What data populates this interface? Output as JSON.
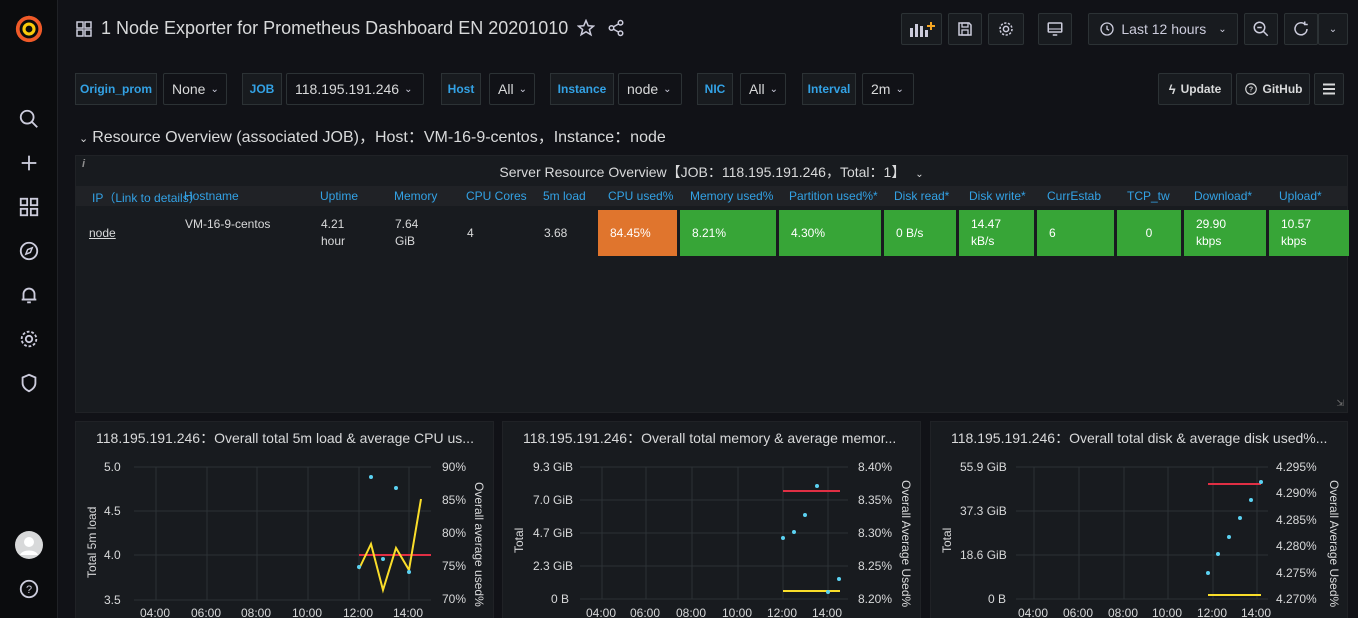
{
  "nav": {
    "title": "1 Node Exporter for Prometheus Dashboard EN 20201010",
    "time_range": "Last 12 hours"
  },
  "vars": [
    {
      "label": "Origin_prom",
      "value": "None"
    },
    {
      "label": "JOB",
      "value": "118.195.191.246"
    },
    {
      "label": "Host",
      "value": "All"
    },
    {
      "label": "Instance",
      "value": "node"
    },
    {
      "label": "NIC",
      "value": "All"
    },
    {
      "label": "Interval",
      "value": "2m"
    }
  ],
  "links": {
    "update": "Update",
    "github": "GitHub"
  },
  "row": {
    "title": "Resource Overview (associated JOB)，Host：VM-16-9-centos，Instance：node"
  },
  "table": {
    "title": "Server Resource Overview【JOB：118.195.191.246，Total：1】",
    "headers": [
      "IP（Link to details）",
      "Hostname",
      "Uptime",
      "Memory",
      "CPU Cores",
      "5m load",
      "CPU used%",
      "Memory used%",
      "Partition used%*",
      "Disk read*",
      "Disk write*",
      "CurrEstab",
      "TCP_tw",
      "Download*",
      "Upload*"
    ],
    "row": {
      "ip": "node",
      "hostname": "VM-16-9-centos",
      "uptime_1": "4.21",
      "uptime_2": "hour",
      "memory_1": "7.64",
      "memory_2": "GiB",
      "cores": "4",
      "load": "3.68",
      "cpu_used": "84.45%",
      "mem_used": "8.21%",
      "part_used": "4.30%",
      "disk_read": "0 B/s",
      "disk_write_1": "14.47",
      "disk_write_2": "kB/s",
      "currestab": "6",
      "tcp_tw": "0",
      "download_1": "29.90",
      "download_2": "kbps",
      "upload_1": "10.57",
      "upload_2": "kbps"
    },
    "colors": {
      "warn": "#e0752d",
      "ok": "#37a537"
    }
  },
  "graphs": [
    {
      "title": "118.195.191.246：Overall total 5m load & average CPU us...",
      "y_left_label": "Total 5m load",
      "y_right_label": "Overall average used%",
      "y_left_ticks": [
        "5.0",
        "4.5",
        "4.0",
        "3.5"
      ],
      "y_right_ticks": [
        "90%",
        "85%",
        "80%",
        "75%",
        "70%"
      ],
      "x_ticks": [
        "04:00",
        "06:00",
        "08:00",
        "10:00",
        "12:00",
        "14:00"
      ]
    },
    {
      "title": "118.195.191.246：Overall total memory & average memor...",
      "y_left_label": "Total",
      "y_right_label": "Overall Average Used%",
      "y_left_ticks": [
        "9.3 GiB",
        "7.0 GiB",
        "4.7 GiB",
        "2.3 GiB",
        "0 B"
      ],
      "y_right_ticks": [
        "8.40%",
        "8.35%",
        "8.30%",
        "8.25%",
        "8.20%"
      ],
      "x_ticks": [
        "04:00",
        "06:00",
        "08:00",
        "10:00",
        "12:00",
        "14:00"
      ]
    },
    {
      "title": "118.195.191.246：Overall total disk & average disk used%...",
      "y_left_label": "Total",
      "y_right_label": "Overall Average Used%",
      "y_left_ticks": [
        "55.9 GiB",
        "37.3 GiB",
        "18.6 GiB",
        "0 B"
      ],
      "y_right_ticks": [
        "4.295%",
        "4.290%",
        "4.285%",
        "4.280%",
        "4.275%",
        "4.270%"
      ],
      "x_ticks": [
        "04:00",
        "06:00",
        "08:00",
        "10:00",
        "12:00",
        "14:00"
      ]
    }
  ]
}
